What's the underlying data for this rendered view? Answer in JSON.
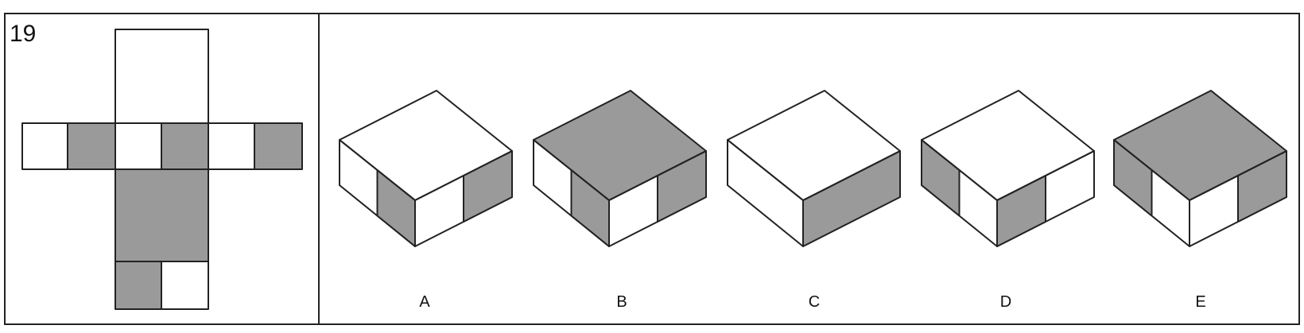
{
  "question": {
    "number": "19"
  },
  "options": [
    {
      "label": "A"
    },
    {
      "label": "B"
    },
    {
      "label": "C"
    },
    {
      "label": "D"
    },
    {
      "label": "E"
    }
  ],
  "colors": {
    "shaded": "#9a9a9a",
    "unshaded": "#ffffff",
    "line": "#222222"
  }
}
